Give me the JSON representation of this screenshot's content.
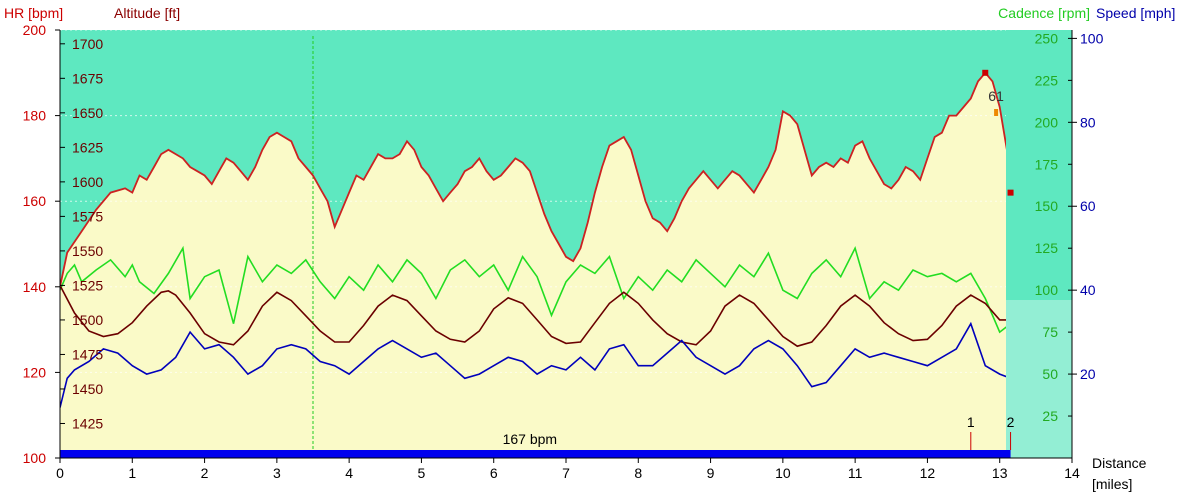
{
  "chart_data": {
    "type": "line",
    "x_axis": {
      "label_line1": "Distance",
      "label_line2": "[miles]",
      "range": [
        0,
        14
      ],
      "ticks": [
        0,
        1,
        2,
        3,
        4,
        5,
        6,
        7,
        8,
        9,
        10,
        11,
        12,
        13,
        14
      ]
    },
    "axes": {
      "hr": {
        "label": "HR [bpm]",
        "color": "#cc0000",
        "range": [
          100,
          200
        ],
        "ticks": [
          100,
          120,
          140,
          160,
          180,
          200
        ]
      },
      "altitude": {
        "label": "Altitude [ft]",
        "color": "#8b0000",
        "range": [
          1400,
          1710
        ],
        "ticks": [
          1425,
          1450,
          1475,
          1500,
          1525,
          1550,
          1575,
          1600,
          1625,
          1650,
          1675,
          1700
        ]
      },
      "cadence": {
        "label": "Cadence [rpm]",
        "color": "#22cc22",
        "range": [
          0,
          255
        ],
        "ticks": [
          25,
          50,
          75,
          100,
          125,
          150,
          175,
          200,
          225,
          250
        ]
      },
      "speed": {
        "label": "Speed [mph]",
        "color": "#0000aa",
        "range": [
          0,
          102
        ],
        "ticks": [
          20,
          40,
          60,
          80,
          100
        ]
      }
    },
    "colors": {
      "hr_fill": "#fafac8",
      "zone_bg": "#5ee8c0",
      "hr_line": "#cc2222",
      "altitude_line": "#6b0000",
      "cadence_line": "#22dd22",
      "speed_line": "#0000bb",
      "bar": "#0000ee",
      "marker": "#cc0000"
    },
    "series": [
      {
        "name": "HR [bpm]",
        "axis": "hr",
        "x": [
          0,
          0.1,
          0.3,
          0.5,
          0.7,
          0.9,
          1.0,
          1.1,
          1.2,
          1.3,
          1.4,
          1.5,
          1.6,
          1.7,
          1.8,
          1.9,
          2.0,
          2.1,
          2.2,
          2.3,
          2.4,
          2.5,
          2.6,
          2.7,
          2.8,
          2.9,
          3.0,
          3.1,
          3.2,
          3.3,
          3.4,
          3.5,
          3.6,
          3.7,
          3.8,
          3.9,
          4.0,
          4.1,
          4.2,
          4.3,
          4.4,
          4.5,
          4.6,
          4.7,
          4.8,
          4.9,
          5.0,
          5.1,
          5.2,
          5.3,
          5.4,
          5.5,
          5.6,
          5.7,
          5.8,
          5.9,
          6.0,
          6.1,
          6.2,
          6.3,
          6.4,
          6.5,
          6.6,
          6.7,
          6.8,
          6.9,
          7.0,
          7.1,
          7.2,
          7.3,
          7.4,
          7.5,
          7.6,
          7.7,
          7.8,
          7.9,
          8.0,
          8.1,
          8.2,
          8.3,
          8.4,
          8.5,
          8.6,
          8.7,
          8.8,
          8.9,
          9.0,
          9.1,
          9.2,
          9.3,
          9.4,
          9.5,
          9.6,
          9.7,
          9.8,
          9.9,
          10.0,
          10.1,
          10.2,
          10.3,
          10.4,
          10.5,
          10.6,
          10.7,
          10.8,
          10.9,
          11.0,
          11.1,
          11.2,
          11.3,
          11.4,
          11.5,
          11.6,
          11.7,
          11.8,
          11.9,
          12.0,
          12.1,
          12.2,
          12.3,
          12.4,
          12.5,
          12.6,
          12.7,
          12.8,
          12.9,
          13.0,
          13.1,
          13.15
        ],
        "y": [
          140,
          148,
          153,
          158,
          162,
          163,
          162,
          166,
          165,
          168,
          171,
          172,
          171,
          170,
          168,
          167,
          166,
          164,
          167,
          170,
          169,
          167,
          165,
          168,
          172,
          175,
          176,
          175,
          174,
          170,
          168,
          166,
          163,
          160,
          154,
          158,
          162,
          166,
          165,
          168,
          171,
          170,
          170,
          171,
          174,
          172,
          168,
          166,
          163,
          160,
          162,
          164,
          167,
          168,
          170,
          167,
          165,
          166,
          168,
          170,
          169,
          167,
          162,
          157,
          153,
          150,
          147,
          146,
          149,
          155,
          162,
          168,
          173,
          174,
          175,
          172,
          166,
          160,
          156,
          155,
          153,
          156,
          160,
          163,
          165,
          167,
          165,
          163,
          165,
          167,
          166,
          164,
          162,
          165,
          168,
          172,
          181,
          180,
          178,
          172,
          166,
          168,
          169,
          168,
          170,
          169,
          173,
          174,
          170,
          167,
          164,
          163,
          165,
          168,
          167,
          165,
          170,
          175,
          176,
          180,
          180,
          182,
          184,
          188,
          190,
          188,
          182,
          172,
          162
        ]
      },
      {
        "name": "Altitude [ft]",
        "axis": "altitude",
        "x": [
          0,
          0.2,
          0.4,
          0.6,
          0.8,
          1.0,
          1.2,
          1.4,
          1.5,
          1.6,
          1.8,
          2.0,
          2.2,
          2.4,
          2.6,
          2.8,
          3.0,
          3.2,
          3.4,
          3.6,
          3.8,
          4.0,
          4.2,
          4.4,
          4.6,
          4.8,
          5.0,
          5.2,
          5.4,
          5.6,
          5.8,
          6.0,
          6.2,
          6.4,
          6.6,
          6.8,
          7.0,
          7.2,
          7.4,
          7.6,
          7.8,
          8.0,
          8.2,
          8.4,
          8.6,
          8.8,
          9.0,
          9.2,
          9.4,
          9.6,
          9.8,
          10.0,
          10.2,
          10.4,
          10.6,
          10.8,
          11.0,
          11.2,
          11.4,
          11.6,
          11.8,
          12.0,
          12.2,
          12.4,
          12.6,
          12.8,
          13.0,
          13.15
        ],
        "y": [
          1525,
          1505,
          1492,
          1488,
          1490,
          1498,
          1510,
          1520,
          1521,
          1518,
          1505,
          1490,
          1484,
          1482,
          1492,
          1510,
          1520,
          1514,
          1503,
          1492,
          1484,
          1484,
          1496,
          1510,
          1518,
          1514,
          1503,
          1492,
          1486,
          1484,
          1492,
          1508,
          1516,
          1512,
          1500,
          1488,
          1483,
          1484,
          1498,
          1512,
          1520,
          1512,
          1500,
          1490,
          1484,
          1482,
          1492,
          1510,
          1518,
          1512,
          1500,
          1488,
          1481,
          1484,
          1496,
          1510,
          1518,
          1510,
          1498,
          1490,
          1485,
          1486,
          1496,
          1510,
          1518,
          1512,
          1500,
          1500
        ]
      },
      {
        "name": "Cadence [rpm]",
        "axis": "cadence",
        "x": [
          0,
          0.1,
          0.2,
          0.3,
          0.5,
          0.7,
          0.9,
          1.0,
          1.1,
          1.3,
          1.5,
          1.7,
          1.8,
          2.0,
          2.2,
          2.4,
          2.5,
          2.6,
          2.8,
          3.0,
          3.2,
          3.4,
          3.6,
          3.8,
          4.0,
          4.2,
          4.4,
          4.6,
          4.8,
          5.0,
          5.2,
          5.4,
          5.6,
          5.8,
          6.0,
          6.2,
          6.4,
          6.6,
          6.8,
          7.0,
          7.2,
          7.4,
          7.6,
          7.8,
          8.0,
          8.2,
          8.4,
          8.6,
          8.8,
          9.0,
          9.2,
          9.4,
          9.6,
          9.8,
          10.0,
          10.2,
          10.4,
          10.6,
          10.8,
          11.0,
          11.2,
          11.4,
          11.6,
          11.8,
          12.0,
          12.2,
          12.4,
          12.6,
          12.8,
          13.0,
          13.15
        ],
        "y": [
          100,
          110,
          115,
          105,
          112,
          118,
          108,
          115,
          105,
          98,
          110,
          125,
          95,
          108,
          112,
          80,
          100,
          120,
          105,
          115,
          110,
          118,
          105,
          95,
          108,
          100,
          115,
          105,
          118,
          110,
          95,
          112,
          118,
          108,
          115,
          100,
          120,
          108,
          85,
          105,
          115,
          110,
          120,
          95,
          108,
          100,
          112,
          105,
          118,
          110,
          102,
          115,
          108,
          122,
          100,
          95,
          110,
          118,
          108,
          125,
          95,
          105,
          100,
          112,
          108,
          110,
          105,
          110,
          95,
          75,
          80
        ]
      },
      {
        "name": "Speed [mph]",
        "axis": "speed",
        "x": [
          0,
          0.1,
          0.2,
          0.4,
          0.6,
          0.8,
          1.0,
          1.2,
          1.4,
          1.6,
          1.8,
          2.0,
          2.2,
          2.4,
          2.6,
          2.8,
          3.0,
          3.2,
          3.4,
          3.6,
          3.8,
          4.0,
          4.2,
          4.4,
          4.6,
          4.8,
          5.0,
          5.2,
          5.4,
          5.6,
          5.8,
          6.0,
          6.2,
          6.4,
          6.6,
          6.8,
          7.0,
          7.2,
          7.4,
          7.6,
          7.8,
          8.0,
          8.2,
          8.4,
          8.6,
          8.8,
          9.0,
          9.2,
          9.4,
          9.6,
          9.8,
          10.0,
          10.2,
          10.4,
          10.6,
          10.8,
          11.0,
          11.2,
          11.4,
          11.6,
          11.8,
          12.0,
          12.2,
          12.4,
          12.6,
          12.8,
          13.0,
          13.15
        ],
        "y": [
          12,
          19,
          21,
          23,
          26,
          25,
          22,
          20,
          21,
          24,
          30,
          26,
          27,
          24,
          20,
          22,
          26,
          27,
          26,
          23,
          22,
          20,
          23,
          26,
          28,
          26,
          24,
          25,
          22,
          19,
          20,
          22,
          24,
          23,
          20,
          22,
          21,
          24,
          21,
          26,
          27,
          22,
          22,
          25,
          28,
          24,
          22,
          20,
          22,
          26,
          28,
          26,
          22,
          17,
          18,
          22,
          26,
          24,
          25,
          24,
          23,
          22,
          24,
          26,
          32,
          22,
          20,
          19
        ]
      }
    ],
    "annotations": {
      "hr_bar_label": "167 bpm",
      "lap_marker_1": "1",
      "lap_marker_2": "2",
      "top_label": "61"
    },
    "vertical_marker_x": 3.5
  }
}
